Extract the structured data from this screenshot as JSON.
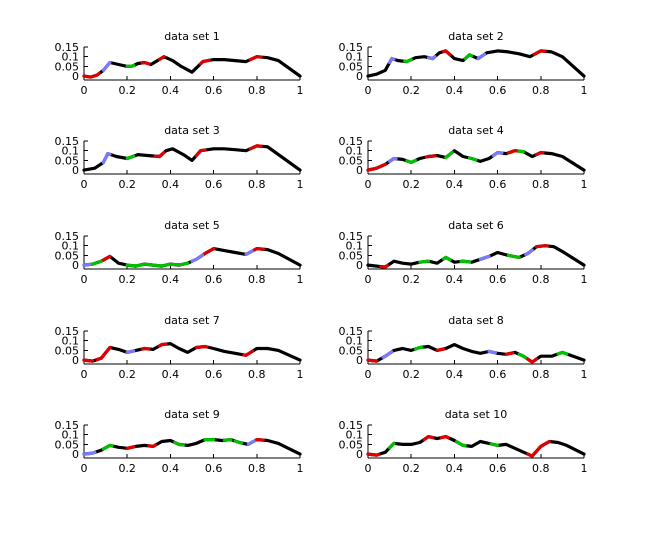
{
  "chart_data": {
    "type": "line",
    "layout": "5x2 grid of small multiples",
    "colors": {
      "trace": "#000000",
      "red": "#e00000",
      "green": "#00c000",
      "blue": "#7a7aff"
    },
    "xlim": [
      0,
      1
    ],
    "ylim": [
      -0.02,
      0.15
    ],
    "xticks": [
      0,
      0.2,
      0.4,
      0.6,
      0.8,
      1
    ],
    "xtick_labels": [
      "0",
      "0.2",
      "0.4",
      "0.6",
      "0.8",
      "1"
    ],
    "yticks": [
      0,
      0.05,
      0.1,
      0.15
    ],
    "ytick_labels": [
      "0",
      "0.05",
      "0.1",
      "0.15"
    ],
    "panels": [
      {
        "title": "data set 1",
        "x": [
          0,
          0.03,
          0.06,
          0.09,
          0.12,
          0.16,
          0.2,
          0.22,
          0.25,
          0.28,
          0.31,
          0.34,
          0.37,
          0.41,
          0.45,
          0.5,
          0.55,
          0.6,
          0.65,
          0.7,
          0.75,
          0.8,
          0.85,
          0.9,
          1
        ],
        "y": [
          0,
          -0.005,
          0.005,
          0.03,
          0.07,
          0.06,
          0.05,
          0.05,
          0.065,
          0.07,
          0.06,
          0.08,
          0.1,
          0.08,
          0.05,
          0.02,
          0.075,
          0.085,
          0.085,
          0.08,
          0.075,
          0.1,
          0.095,
          0.08,
          0
        ],
        "highlights": [
          {
            "x0": 0,
            "x1": 0.07,
            "color": "red"
          },
          {
            "x0": 0.09,
            "x1": 0.12,
            "color": "blue"
          },
          {
            "x0": 0.2,
            "x1": 0.23,
            "color": "green"
          },
          {
            "x0": 0.27,
            "x1": 0.3,
            "color": "red"
          },
          {
            "x0": 0.35,
            "x1": 0.37,
            "color": "red"
          },
          {
            "x0": 0.54,
            "x1": 0.58,
            "color": "red"
          },
          {
            "x0": 0.77,
            "x1": 0.82,
            "color": "red"
          }
        ]
      },
      {
        "title": "data set 2",
        "x": [
          0,
          0.04,
          0.08,
          0.11,
          0.14,
          0.18,
          0.22,
          0.26,
          0.3,
          0.33,
          0.36,
          0.4,
          0.44,
          0.47,
          0.51,
          0.55,
          0.6,
          0.65,
          0.7,
          0.75,
          0.8,
          0.85,
          0.9,
          1
        ],
        "y": [
          0,
          0.01,
          0.03,
          0.09,
          0.08,
          0.075,
          0.095,
          0.1,
          0.09,
          0.12,
          0.13,
          0.09,
          0.08,
          0.11,
          0.09,
          0.12,
          0.13,
          0.125,
          0.115,
          0.1,
          0.13,
          0.125,
          0.1,
          0
        ],
        "highlights": [
          {
            "x0": 0.1,
            "x1": 0.12,
            "color": "blue"
          },
          {
            "x0": 0.17,
            "x1": 0.2,
            "color": "green"
          },
          {
            "x0": 0.28,
            "x1": 0.31,
            "color": "blue"
          },
          {
            "x0": 0.35,
            "x1": 0.38,
            "color": "red"
          },
          {
            "x0": 0.45,
            "x1": 0.48,
            "color": "green"
          },
          {
            "x0": 0.51,
            "x1": 0.54,
            "color": "blue"
          },
          {
            "x0": 0.77,
            "x1": 0.82,
            "color": "red"
          }
        ]
      },
      {
        "title": "data set 3",
        "x": [
          0,
          0.05,
          0.09,
          0.11,
          0.15,
          0.2,
          0.25,
          0.3,
          0.35,
          0.38,
          0.41,
          0.46,
          0.5,
          0.54,
          0.6,
          0.65,
          0.7,
          0.75,
          0.8,
          0.85,
          0.9,
          1
        ],
        "y": [
          0,
          0.01,
          0.04,
          0.085,
          0.07,
          0.06,
          0.08,
          0.075,
          0.07,
          0.1,
          0.11,
          0.08,
          0.05,
          0.1,
          0.11,
          0.11,
          0.105,
          0.1,
          0.125,
          0.12,
          0.08,
          0
        ],
        "highlights": [
          {
            "x0": 0.09,
            "x1": 0.12,
            "color": "blue"
          },
          {
            "x0": 0.2,
            "x1": 0.23,
            "color": "green"
          },
          {
            "x0": 0.33,
            "x1": 0.37,
            "color": "red"
          },
          {
            "x0": 0.52,
            "x1": 0.56,
            "color": "red"
          },
          {
            "x0": 0.77,
            "x1": 0.82,
            "color": "red"
          }
        ]
      },
      {
        "title": "data set 4",
        "x": [
          0,
          0.04,
          0.08,
          0.12,
          0.16,
          0.2,
          0.24,
          0.28,
          0.32,
          0.36,
          0.4,
          0.44,
          0.48,
          0.52,
          0.56,
          0.6,
          0.64,
          0.68,
          0.72,
          0.76,
          0.8,
          0.85,
          0.9,
          1
        ],
        "y": [
          0,
          0.01,
          0.03,
          0.06,
          0.055,
          0.04,
          0.06,
          0.07,
          0.075,
          0.065,
          0.1,
          0.07,
          0.06,
          0.045,
          0.06,
          0.09,
          0.085,
          0.1,
          0.095,
          0.07,
          0.09,
          0.085,
          0.07,
          0
        ],
        "highlights": [
          {
            "x0": 0,
            "x1": 0.08,
            "color": "red"
          },
          {
            "x0": 0.1,
            "x1": 0.13,
            "color": "blue"
          },
          {
            "x0": 0.18,
            "x1": 0.22,
            "color": "green"
          },
          {
            "x0": 0.27,
            "x1": 0.31,
            "color": "red"
          },
          {
            "x0": 0.36,
            "x1": 0.39,
            "color": "green"
          },
          {
            "x0": 0.47,
            "x1": 0.5,
            "color": "green"
          },
          {
            "x0": 0.58,
            "x1": 0.62,
            "color": "blue"
          },
          {
            "x0": 0.65,
            "x1": 0.69,
            "color": "red"
          },
          {
            "x0": 0.7,
            "x1": 0.72,
            "color": "green"
          },
          {
            "x0": 0.78,
            "x1": 0.81,
            "color": "red"
          }
        ]
      },
      {
        "title": "data set 5",
        "x": [
          0,
          0.04,
          0.08,
          0.12,
          0.16,
          0.2,
          0.24,
          0.28,
          0.32,
          0.36,
          0.4,
          0.44,
          0.48,
          0.52,
          0.56,
          0.6,
          0.65,
          0.7,
          0.75,
          0.8,
          0.85,
          0.9,
          1
        ],
        "y": [
          0,
          0.005,
          0.02,
          0.045,
          0.01,
          0.0,
          -0.005,
          0.005,
          0.0,
          -0.005,
          0.005,
          0.0,
          0.01,
          0.03,
          0.06,
          0.085,
          0.075,
          0.065,
          0.055,
          0.085,
          0.08,
          0.06,
          0
        ],
        "highlights": [
          {
            "x0": 0,
            "x1": 0.04,
            "color": "blue"
          },
          {
            "x0": 0.04,
            "x1": 0.08,
            "color": "green"
          },
          {
            "x0": 0.09,
            "x1": 0.12,
            "color": "red"
          },
          {
            "x0": 0.2,
            "x1": 0.48,
            "color": "green"
          },
          {
            "x0": 0.5,
            "x1": 0.55,
            "color": "blue"
          },
          {
            "x0": 0.56,
            "x1": 0.6,
            "color": "red"
          },
          {
            "x0": 0.75,
            "x1": 0.79,
            "color": "blue"
          },
          {
            "x0": 0.79,
            "x1": 0.83,
            "color": "red"
          }
        ]
      },
      {
        "title": "data set 6",
        "x": [
          0,
          0.04,
          0.08,
          0.12,
          0.16,
          0.2,
          0.24,
          0.28,
          0.32,
          0.36,
          0.4,
          0.44,
          0.48,
          0.52,
          0.56,
          0.6,
          0.65,
          0.7,
          0.74,
          0.78,
          0.82,
          0.86,
          0.9,
          1
        ],
        "y": [
          0,
          -0.005,
          -0.01,
          0.02,
          0.01,
          0.005,
          0.015,
          0.02,
          0.01,
          0.04,
          0.015,
          0.02,
          0.015,
          0.03,
          0.045,
          0.065,
          0.05,
          0.04,
          0.06,
          0.095,
          0.1,
          0.095,
          0.07,
          0
        ],
        "highlights": [
          {
            "x0": 0.06,
            "x1": 0.09,
            "color": "red"
          },
          {
            "x0": 0.24,
            "x1": 0.28,
            "color": "green"
          },
          {
            "x0": 0.35,
            "x1": 0.38,
            "color": "green"
          },
          {
            "x0": 0.43,
            "x1": 0.47,
            "color": "green"
          },
          {
            "x0": 0.52,
            "x1": 0.56,
            "color": "blue"
          },
          {
            "x0": 0.65,
            "x1": 0.7,
            "color": "green"
          },
          {
            "x0": 0.73,
            "x1": 0.76,
            "color": "blue"
          },
          {
            "x0": 0.78,
            "x1": 0.83,
            "color": "red"
          }
        ]
      },
      {
        "title": "data set 7",
        "x": [
          0,
          0.04,
          0.08,
          0.12,
          0.16,
          0.2,
          0.24,
          0.28,
          0.32,
          0.36,
          0.4,
          0.44,
          0.48,
          0.52,
          0.56,
          0.6,
          0.65,
          0.7,
          0.75,
          0.8,
          0.85,
          0.9,
          1
        ],
        "y": [
          0,
          -0.005,
          0.01,
          0.065,
          0.055,
          0.04,
          0.05,
          0.06,
          0.055,
          0.08,
          0.085,
          0.06,
          0.04,
          0.065,
          0.07,
          0.06,
          0.045,
          0.035,
          0.025,
          0.06,
          0.06,
          0.05,
          0
        ],
        "highlights": [
          {
            "x0": 0,
            "x1": 0.04,
            "color": "red"
          },
          {
            "x0": 0.06,
            "x1": 0.12,
            "color": "red"
          },
          {
            "x0": 0.2,
            "x1": 0.23,
            "color": "blue"
          },
          {
            "x0": 0.27,
            "x1": 0.3,
            "color": "red"
          },
          {
            "x0": 0.35,
            "x1": 0.38,
            "color": "red"
          },
          {
            "x0": 0.52,
            "x1": 0.57,
            "color": "red"
          },
          {
            "x0": 0.74,
            "x1": 0.78,
            "color": "red"
          }
        ]
      },
      {
        "title": "data set 8",
        "x": [
          0,
          0.04,
          0.08,
          0.12,
          0.16,
          0.2,
          0.24,
          0.28,
          0.32,
          0.36,
          0.4,
          0.44,
          0.48,
          0.52,
          0.56,
          0.6,
          0.64,
          0.68,
          0.72,
          0.76,
          0.8,
          0.85,
          0.9,
          1
        ],
        "y": [
          0,
          -0.005,
          0.02,
          0.05,
          0.06,
          0.05,
          0.065,
          0.07,
          0.05,
          0.06,
          0.08,
          0.06,
          0.045,
          0.035,
          0.045,
          0.035,
          0.03,
          0.04,
          0.02,
          -0.01,
          0.02,
          0.02,
          0.04,
          0
        ],
        "highlights": [
          {
            "x0": 0,
            "x1": 0.04,
            "color": "red"
          },
          {
            "x0": 0.07,
            "x1": 0.11,
            "color": "blue"
          },
          {
            "x0": 0.22,
            "x1": 0.25,
            "color": "green"
          },
          {
            "x0": 0.32,
            "x1": 0.35,
            "color": "red"
          },
          {
            "x0": 0.56,
            "x1": 0.59,
            "color": "blue"
          },
          {
            "x0": 0.64,
            "x1": 0.67,
            "color": "red"
          },
          {
            "x0": 0.7,
            "x1": 0.73,
            "color": "green"
          },
          {
            "x0": 0.74,
            "x1": 0.78,
            "color": "red"
          },
          {
            "x0": 0.88,
            "x1": 0.92,
            "color": "green"
          }
        ]
      },
      {
        "title": "data set 9",
        "x": [
          0,
          0.04,
          0.08,
          0.12,
          0.16,
          0.2,
          0.24,
          0.28,
          0.32,
          0.36,
          0.4,
          0.44,
          0.48,
          0.52,
          0.56,
          0.6,
          0.64,
          0.68,
          0.72,
          0.76,
          0.8,
          0.85,
          0.9,
          1
        ],
        "y": [
          0,
          0.005,
          0.02,
          0.045,
          0.035,
          0.03,
          0.04,
          0.045,
          0.04,
          0.065,
          0.07,
          0.05,
          0.045,
          0.055,
          0.075,
          0.075,
          0.07,
          0.075,
          0.06,
          0.05,
          0.075,
          0.07,
          0.055,
          0
        ],
        "highlights": [
          {
            "x0": 0,
            "x1": 0.05,
            "color": "blue"
          },
          {
            "x0": 0.09,
            "x1": 0.13,
            "color": "green"
          },
          {
            "x0": 0.2,
            "x1": 0.23,
            "color": "red"
          },
          {
            "x0": 0.3,
            "x1": 0.33,
            "color": "red"
          },
          {
            "x0": 0.42,
            "x1": 0.46,
            "color": "green"
          },
          {
            "x0": 0.56,
            "x1": 0.6,
            "color": "green"
          },
          {
            "x0": 0.65,
            "x1": 0.68,
            "color": "green"
          },
          {
            "x0": 0.7,
            "x1": 0.73,
            "color": "green"
          },
          {
            "x0": 0.76,
            "x1": 0.8,
            "color": "blue"
          },
          {
            "x0": 0.8,
            "x1": 0.83,
            "color": "red"
          }
        ]
      },
      {
        "title": "data set 10",
        "x": [
          0,
          0.04,
          0.08,
          0.12,
          0.16,
          0.2,
          0.24,
          0.28,
          0.32,
          0.36,
          0.4,
          0.44,
          0.48,
          0.52,
          0.56,
          0.6,
          0.64,
          0.68,
          0.72,
          0.76,
          0.8,
          0.84,
          0.88,
          0.92,
          1
        ],
        "y": [
          0,
          -0.005,
          0.01,
          0.055,
          0.05,
          0.05,
          0.06,
          0.09,
          0.08,
          0.09,
          0.07,
          0.045,
          0.04,
          0.065,
          0.055,
          0.045,
          0.05,
          0.03,
          0.01,
          -0.01,
          0.04,
          0.065,
          0.06,
          0.045,
          0
        ],
        "highlights": [
          {
            "x0": 0,
            "x1": 0.05,
            "color": "red"
          },
          {
            "x0": 0.1,
            "x1": 0.12,
            "color": "green"
          },
          {
            "x0": 0.26,
            "x1": 0.3,
            "color": "red"
          },
          {
            "x0": 0.34,
            "x1": 0.37,
            "color": "red"
          },
          {
            "x0": 0.41,
            "x1": 0.45,
            "color": "green"
          },
          {
            "x0": 0.57,
            "x1": 0.6,
            "color": "green"
          },
          {
            "x0": 0.74,
            "x1": 0.84,
            "color": "red"
          }
        ]
      }
    ]
  }
}
